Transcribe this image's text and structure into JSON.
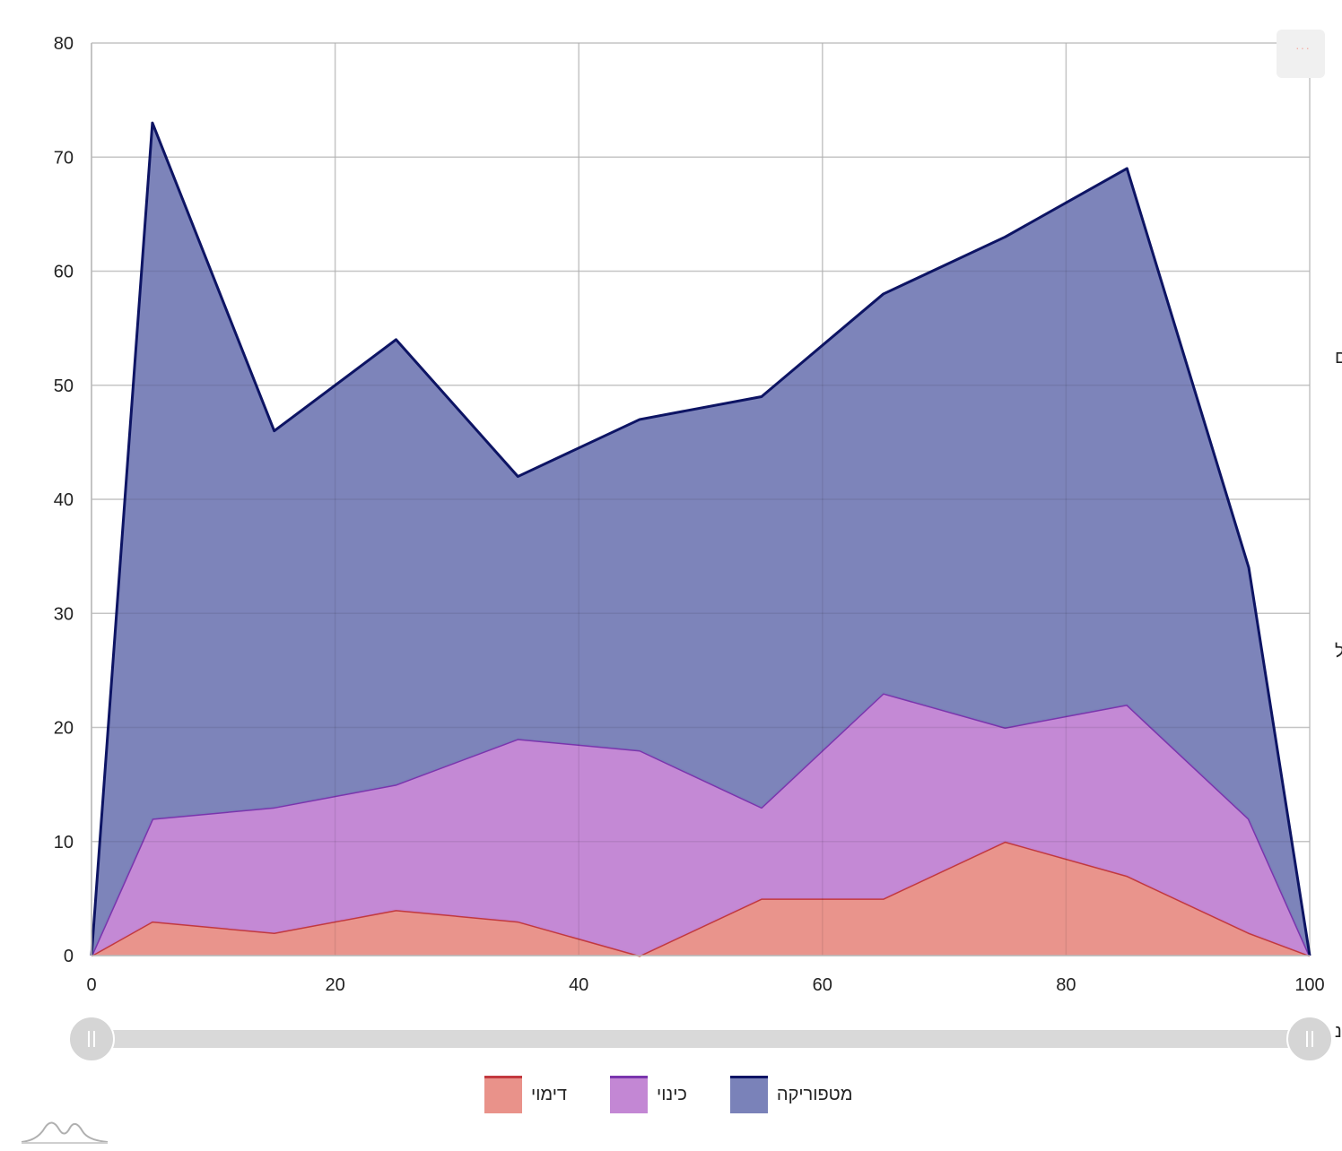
{
  "chart_data": {
    "type": "area",
    "stacked": true,
    "x": [
      0,
      5,
      15,
      25,
      35,
      45,
      55,
      65,
      75,
      85,
      95,
      100
    ],
    "series": [
      {
        "name": "דימוי",
        "values": [
          0,
          3,
          2,
          4,
          3,
          0,
          5,
          5,
          10,
          7,
          2,
          0
        ],
        "fill": "#e9928a",
        "stroke": "#c2393f"
      },
      {
        "name": "כינוי",
        "values": [
          0,
          9,
          11,
          11,
          16,
          18,
          8,
          18,
          10,
          15,
          10,
          0
        ],
        "fill": "#c387d4",
        "stroke": "#7a35ad"
      },
      {
        "name": "מטפוריקה",
        "values": [
          0,
          61,
          33,
          39,
          23,
          29,
          36,
          35,
          43,
          47,
          22,
          0
        ],
        "fill": "#7a82b9",
        "stroke": "#0d1464"
      }
    ],
    "xlim": [
      0,
      100
    ],
    "ylim": [
      0,
      80
    ],
    "xticks": [
      "0",
      "20",
      "40",
      "60",
      "80",
      "100"
    ],
    "yticks": [
      "0",
      "10",
      "20",
      "30",
      "40",
      "50",
      "60",
      "70",
      "80"
    ],
    "grid": true,
    "legend_position": "bottom"
  },
  "ui": {
    "menu_dots": "···",
    "cut_off_labels": [
      "ם",
      "ל",
      "נ"
    ]
  }
}
